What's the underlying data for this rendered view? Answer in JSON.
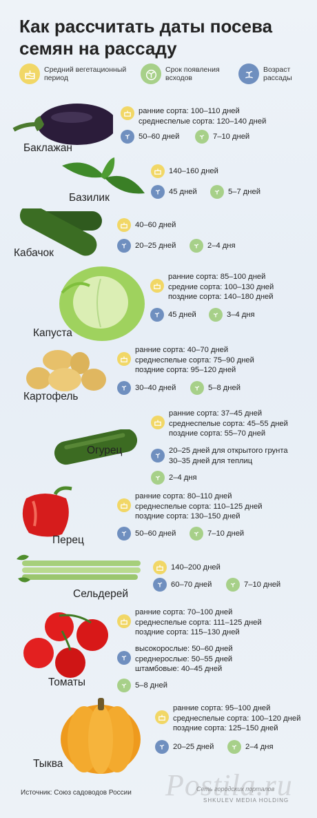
{
  "title": "Как рассчитать даты посева семян на рассаду",
  "legend": {
    "vegetation": "Средний вегетационный период",
    "sprouts": "Срок появления всходов",
    "age": "Возраст рассады"
  },
  "colors": {
    "yellow": "#f1d766",
    "green": "#a7d089",
    "blue": "#6f8fbf"
  },
  "vegetables": [
    {
      "name": "Баклажан",
      "vegetation": [
        "ранние сорта: 100–110 дней",
        "среднеспелые сорта: 120–140 дней"
      ],
      "age": [
        "50–60 дней"
      ],
      "sprouts": "7–10 дней"
    },
    {
      "name": "Базилик",
      "vegetation": [
        "140–160 дней"
      ],
      "age": [
        "45 дней"
      ],
      "sprouts": "5–7 дней"
    },
    {
      "name": "Кабачок",
      "vegetation": [
        "40–60 дней"
      ],
      "age": [
        "20–25 дней"
      ],
      "sprouts": "2–4 дня"
    },
    {
      "name": "Капуста",
      "vegetation": [
        "ранние сорта: 85–100 дней",
        "средние сорта: 100–130 дней",
        "поздние сорта: 140–180 дней"
      ],
      "age": [
        "45 дней"
      ],
      "sprouts": "3–4 дня"
    },
    {
      "name": "Картофель",
      "vegetation": [
        "ранние сорта: 40–70 дней",
        "среднеспелые сорта: 75–90 дней",
        "поздние сорта: 95–120 дней"
      ],
      "age": [
        "30–40 дней"
      ],
      "sprouts": "5–8 дней"
    },
    {
      "name": "Огурец",
      "vegetation": [
        "ранние сорта: 37–45 дней",
        "среднеспелые сорта: 45–55 дней",
        "поздние сорта: 55–70 дней"
      ],
      "age": [
        "20–25 дней для открытого грунта",
        "30–35 дней для теплиц"
      ],
      "sprouts": "2–4 дня"
    },
    {
      "name": "Перец",
      "vegetation": [
        "ранние сорта: 80–110 дней",
        "среднеспелые сорта: 110–125 дней",
        "поздние сорта: 130–150 дней"
      ],
      "age": [
        "50–60 дней"
      ],
      "sprouts": "7–10 дней"
    },
    {
      "name": "Сельдерей",
      "vegetation": [
        "140–200 дней"
      ],
      "age": [
        "60–70 дней"
      ],
      "sprouts": "7–10 дней"
    },
    {
      "name": "Томаты",
      "vegetation": [
        "ранние сорта: 70–100 дней",
        "среднеспелые сорта: 111–125 дней",
        "поздние сорта: 115–130 дней"
      ],
      "age": [
        "высокорослые: 50–60 дней",
        "среднерослые: 50–55 дней",
        "штамбовые: 40–45 дней"
      ],
      "sprouts": "5–8 дней"
    },
    {
      "name": "Тыква",
      "vegetation": [
        "ранние сорта: 95–100 дней",
        "среднеспелые сорта: 100–120 дней",
        "поздние сорта: 125–150 дней"
      ],
      "age": [
        "20–25 дней"
      ],
      "sprouts": "2–4 дня"
    }
  ],
  "source": "Источник: Союз садоводов России",
  "watermark": "Postila.ru",
  "watermark_small": "Сеть городских порталов",
  "watermark_small2": "SHKULEV MEDIA HOLDING"
}
